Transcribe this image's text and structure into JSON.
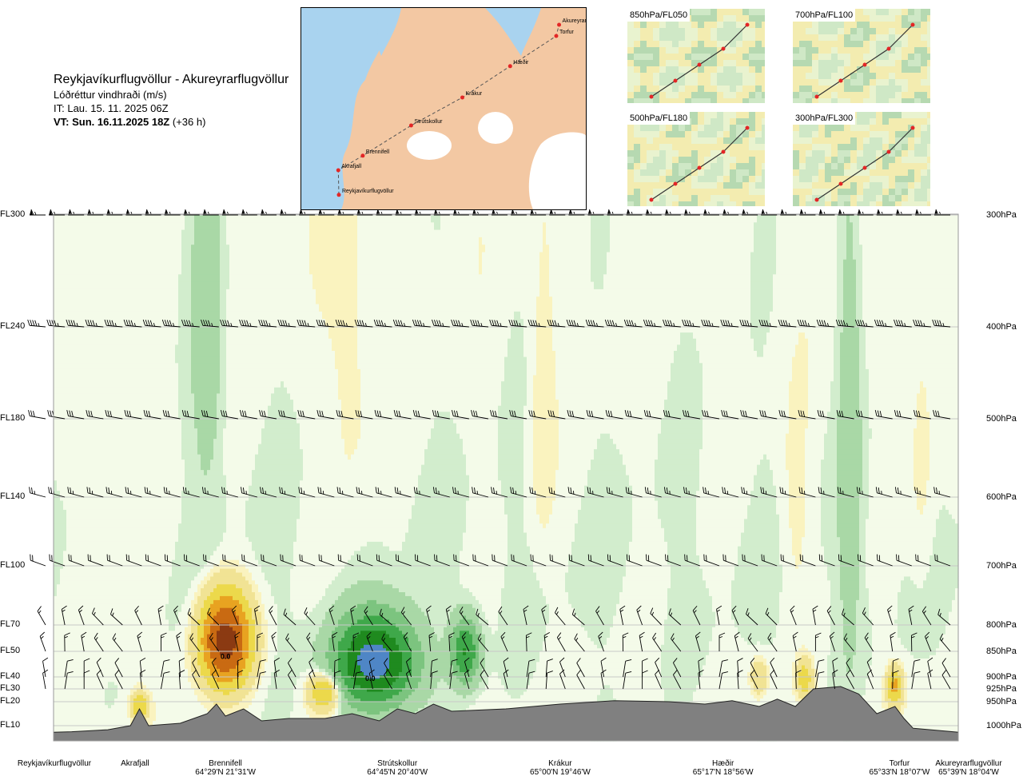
{
  "header": {
    "route": "Reykjavíkurflugvöllur - Akureyrarflugvöllur",
    "variable": "Lóðréttur vindhraði (m/s)",
    "issue": "IT: Lau. 15. 11. 2025 06Z",
    "valid": "VT: Sun. 16.11.2025 18Z",
    "lead": "(+36 h)"
  },
  "map": {
    "waypoints": [
      {
        "name": "Reykjavíkurflugvöllur",
        "lon": -21.94,
        "lat": 64.13
      },
      {
        "name": "Akrafjall",
        "lon": -21.95,
        "lat": 64.35
      },
      {
        "name": "Brennifell",
        "lon": -21.52,
        "lat": 64.48
      },
      {
        "name": "Strútskollur",
        "lon": -20.67,
        "lat": 64.75
      },
      {
        "name": "Krákur",
        "lon": -19.77,
        "lat": 65.0
      },
      {
        "name": "Hæðir",
        "lon": -18.93,
        "lat": 65.28
      },
      {
        "name": "Torfur",
        "lon": -18.12,
        "lat": 65.55
      },
      {
        "name": "Akureyrarflugvöllur",
        "lon": -18.07,
        "lat": 65.65
      }
    ],
    "colors": {
      "sea": "#a9d3ef",
      "land": "#f3c8a3",
      "glacier": "#ffffff",
      "route": "#555555",
      "point": "#e32626"
    }
  },
  "mini_maps": [
    {
      "label": "850hPa/FL050"
    },
    {
      "label": "700hPa/FL100"
    },
    {
      "label": "500hPa/FL180"
    },
    {
      "label": "300hPa/FL300"
    }
  ],
  "chart_data": {
    "type": "heatmap",
    "ylabel_left_levels": [
      {
        "fl": "FL300",
        "hpa": "300hPa",
        "p": 300
      },
      {
        "fl": "FL240",
        "hpa": "400hPa",
        "p": 400
      },
      {
        "fl": "FL180",
        "hpa": "500hPa",
        "p": 500
      },
      {
        "fl": "FL140",
        "hpa": "600hPa",
        "p": 600
      },
      {
        "fl": "FL100",
        "hpa": "700hPa",
        "p": 700
      },
      {
        "fl": "FL70",
        "hpa": "800hPa",
        "p": 800
      },
      {
        "fl": "FL50",
        "hpa": "850hPa",
        "p": 850
      },
      {
        "fl": "FL40",
        "hpa": "900hPa",
        "p": 900
      },
      {
        "fl": "FL30",
        "hpa": "925hPa",
        "p": 925
      },
      {
        "fl": "FL20",
        "hpa": "950hPa",
        "p": 950
      },
      {
        "fl": "FL10",
        "hpa": "1000hPa",
        "p": 1000
      }
    ],
    "stations": [
      {
        "name": "Reykjavíkurflugvöllur",
        "coord": "",
        "d": 0.0
      },
      {
        "name": "Akrafjall",
        "coord": "",
        "d": 0.09
      },
      {
        "name": "Brennifell",
        "coord": "64°29'N 21°31'W",
        "d": 0.19
      },
      {
        "name": "Strútskollur",
        "coord": "64°45'N 20°40'W",
        "d": 0.38
      },
      {
        "name": "Krákur",
        "coord": "65°00'N 19°46'W",
        "d": 0.56
      },
      {
        "name": "Hæðir",
        "coord": "65°17'N 18°56'W",
        "d": 0.74
      },
      {
        "name": "Torfur",
        "coord": "65°33'N 18°07'W",
        "d": 0.935
      },
      {
        "name": "Akureyrarflugvöllur",
        "coord": "65°39'N 18°04'W",
        "d": 1.0
      }
    ],
    "annotations": [
      {
        "text": "0.0",
        "d": 0.19,
        "p": 865
      },
      {
        "text": "0.0",
        "d": 0.35,
        "p": 908
      }
    ],
    "color_levels": [
      {
        "w": -1.5,
        "color": "#4f86c6"
      },
      {
        "w": -1.0,
        "color": "#1f8a1f"
      },
      {
        "w": -0.6,
        "color": "#3fa84a"
      },
      {
        "w": -0.3,
        "color": "#7cc47f"
      },
      {
        "w": -0.1,
        "color": "#a9d8a6"
      },
      {
        "w": -0.03,
        "color": "#d2edcd"
      },
      {
        "w": 0.0,
        "color": "#f4fbe9"
      },
      {
        "w": 0.03,
        "color": "#faf3bf"
      },
      {
        "w": 0.1,
        "color": "#f1e394"
      },
      {
        "w": 0.3,
        "color": "#ecd94b"
      },
      {
        "w": 0.6,
        "color": "#e8a321"
      },
      {
        "w": 1.0,
        "color": "#c96a12"
      },
      {
        "w": 1.5,
        "color": "#8b3a12"
      }
    ],
    "features": [
      {
        "d": 0.19,
        "p": 830,
        "w": 1.8,
        "sd": 0.018,
        "sp": 55
      },
      {
        "d": 0.355,
        "p": 870,
        "w": -1.8,
        "sd": 0.028,
        "sp": 55
      },
      {
        "d": 0.455,
        "p": 850,
        "w": -1.0,
        "sd": 0.01,
        "sp": 40
      },
      {
        "d": 0.3,
        "p": 930,
        "w": 0.7,
        "sd": 0.012,
        "sp": 25
      },
      {
        "d": 0.095,
        "p": 960,
        "w": 0.6,
        "sd": 0.006,
        "sp": 20
      },
      {
        "d": 0.17,
        "p": 400,
        "w": -0.2,
        "sd": 0.012,
        "sp": 120
      },
      {
        "d": 0.88,
        "p": 550,
        "w": -0.2,
        "sd": 0.008,
        "sp": 200
      },
      {
        "d": 0.33,
        "p": 450,
        "w": 0.08,
        "sd": 0.02,
        "sp": 150
      },
      {
        "d": 0.54,
        "p": 500,
        "w": 0.1,
        "sd": 0.01,
        "sp": 120
      },
      {
        "d": 0.82,
        "p": 620,
        "w": 0.08,
        "sd": 0.012,
        "sp": 100
      },
      {
        "d": 0.96,
        "p": 550,
        "w": 0.08,
        "sd": 0.01,
        "sp": 150
      },
      {
        "d": 0.07,
        "p": 700,
        "w": 0.06,
        "sd": 0.02,
        "sp": 150
      },
      {
        "d": 0.78,
        "p": 900,
        "w": 0.3,
        "sd": 0.006,
        "sp": 25
      },
      {
        "d": 0.83,
        "p": 905,
        "w": 0.5,
        "sd": 0.006,
        "sp": 25
      },
      {
        "d": 0.93,
        "p": 920,
        "w": 0.7,
        "sd": 0.006,
        "sp": 25
      }
    ],
    "terrain_pressure": [
      {
        "d": 0.0,
        "p": 1013
      },
      {
        "d": 0.02,
        "p": 1012
      },
      {
        "d": 0.06,
        "p": 1008
      },
      {
        "d": 0.085,
        "p": 1000
      },
      {
        "d": 0.095,
        "p": 965
      },
      {
        "d": 0.105,
        "p": 1000
      },
      {
        "d": 0.14,
        "p": 995
      },
      {
        "d": 0.17,
        "p": 975
      },
      {
        "d": 0.18,
        "p": 955
      },
      {
        "d": 0.19,
        "p": 980
      },
      {
        "d": 0.21,
        "p": 965
      },
      {
        "d": 0.23,
        "p": 990
      },
      {
        "d": 0.26,
        "p": 985
      },
      {
        "d": 0.3,
        "p": 985
      },
      {
        "d": 0.33,
        "p": 975
      },
      {
        "d": 0.36,
        "p": 990
      },
      {
        "d": 0.38,
        "p": 965
      },
      {
        "d": 0.4,
        "p": 975
      },
      {
        "d": 0.42,
        "p": 955
      },
      {
        "d": 0.44,
        "p": 970
      },
      {
        "d": 0.5,
        "p": 965
      },
      {
        "d": 0.56,
        "p": 955
      },
      {
        "d": 0.62,
        "p": 948
      },
      {
        "d": 0.68,
        "p": 950
      },
      {
        "d": 0.72,
        "p": 955
      },
      {
        "d": 0.75,
        "p": 948
      },
      {
        "d": 0.78,
        "p": 960
      },
      {
        "d": 0.8,
        "p": 945
      },
      {
        "d": 0.82,
        "p": 960
      },
      {
        "d": 0.84,
        "p": 925
      },
      {
        "d": 0.87,
        "p": 920
      },
      {
        "d": 0.89,
        "p": 935
      },
      {
        "d": 0.91,
        "p": 975
      },
      {
        "d": 0.93,
        "p": 960
      },
      {
        "d": 0.94,
        "p": 985
      },
      {
        "d": 0.95,
        "p": 1005
      },
      {
        "d": 1.0,
        "p": 1013
      }
    ],
    "wind_rows": [
      {
        "p": 300,
        "n": 48,
        "dir": 270,
        "speed": 65
      },
      {
        "p": 400,
        "n": 48,
        "dir": 275,
        "speed": 45
      },
      {
        "p": 500,
        "n": 48,
        "dir": 280,
        "speed": 30
      },
      {
        "p": 600,
        "n": 48,
        "dir": 285,
        "speed": 25
      },
      {
        "p": 700,
        "n": 48,
        "dir": 290,
        "speed": 20
      },
      {
        "p": 800,
        "n": 48,
        "dir": 330,
        "speed": 15
      },
      {
        "p": 850,
        "n": 48,
        "dir": 340,
        "speed": 15
      },
      {
        "p": 900,
        "n": 48,
        "dir": 350,
        "speed": 10
      },
      {
        "p": 925,
        "n": 48,
        "dir": 350,
        "speed": 10
      }
    ]
  }
}
